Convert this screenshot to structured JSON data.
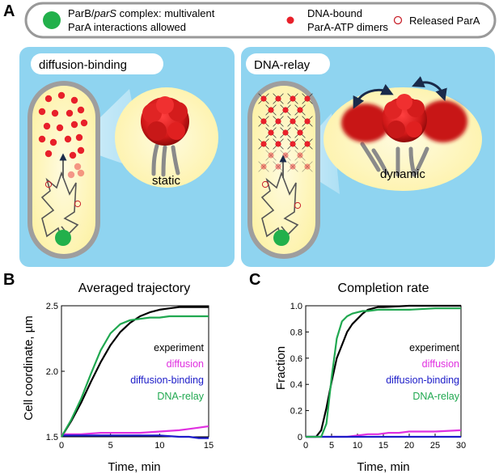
{
  "panels": {
    "a_letter": "A",
    "b_letter": "B",
    "c_letter": "C"
  },
  "legend": {
    "item1_line1_prefix": "ParB/",
    "item1_line1_italic": "parS",
    "item1_line1_suffix": " complex: multivalent",
    "item1_line2": "ParA interactions allowed",
    "item2_line1": "DNA-bound",
    "item2_line2": "ParA-ATP dimers",
    "item3": "Released ParA",
    "colors": {
      "complex": "#22b04b",
      "dimer": "#e8202a",
      "released": "#c8202a"
    }
  },
  "models": {
    "left_title": "diffusion-binding",
    "left_state": "static",
    "right_title": "DNA-relay",
    "right_state": "dynamic"
  },
  "series_names": [
    "experiment",
    "diffusion",
    "diffusion-binding",
    "DNA-relay"
  ],
  "series_colors": {
    "experiment": "#000000",
    "diffusion": "#e030e0",
    "diffusion-binding": "#1c1cc8",
    "DNA-relay": "#20a850"
  },
  "chart_data": [
    {
      "type": "line",
      "title": "Averaged trajectory",
      "xlabel": "Time, min",
      "ylabel": "Cell coordinate, µm",
      "xlim": [
        0,
        15
      ],
      "ylim": [
        1.5,
        2.5
      ],
      "xticks": [
        0,
        5,
        10,
        15
      ],
      "yticks": [
        1.5,
        2.0,
        2.5
      ],
      "ytick_labels": [
        "1.5",
        "2.0",
        "2.5"
      ],
      "series": [
        {
          "name": "experiment",
          "x": [
            0,
            1,
            2,
            3,
            4,
            5,
            6,
            7,
            8,
            9,
            10,
            11,
            12,
            13,
            14,
            15
          ],
          "y": [
            1.5,
            1.62,
            1.76,
            1.92,
            2.07,
            2.2,
            2.3,
            2.37,
            2.42,
            2.45,
            2.47,
            2.48,
            2.49,
            2.49,
            2.49,
            2.49
          ]
        },
        {
          "name": "diffusion",
          "x": [
            0,
            2,
            4,
            6,
            8,
            10,
            12,
            13,
            14,
            15
          ],
          "y": [
            1.52,
            1.52,
            1.53,
            1.53,
            1.53,
            1.54,
            1.55,
            1.56,
            1.57,
            1.58
          ]
        },
        {
          "name": "diffusion-binding",
          "x": [
            0,
            2,
            4,
            6,
            8,
            10,
            12,
            13,
            14,
            15
          ],
          "y": [
            1.51,
            1.51,
            1.51,
            1.51,
            1.51,
            1.51,
            1.5,
            1.5,
            1.49,
            1.49
          ]
        },
        {
          "name": "DNA-relay",
          "x": [
            0,
            1,
            2,
            3,
            4,
            5,
            6,
            7,
            8,
            9,
            10,
            11,
            12,
            13,
            14,
            15
          ],
          "y": [
            1.5,
            1.63,
            1.79,
            1.98,
            2.16,
            2.29,
            2.36,
            2.39,
            2.4,
            2.41,
            2.41,
            2.42,
            2.42,
            2.42,
            2.42,
            2.42
          ]
        }
      ]
    },
    {
      "type": "line",
      "title": "Completion rate",
      "xlabel": "Time, min",
      "ylabel": "Fraction",
      "xlim": [
        0,
        30
      ],
      "ylim": [
        0,
        1.0
      ],
      "xticks": [
        0,
        5,
        10,
        15,
        20,
        25,
        30
      ],
      "yticks": [
        0,
        0.2,
        0.4,
        0.6,
        0.8,
        1.0
      ],
      "ytick_labels": [
        "0",
        "0.2",
        "0.4",
        "0.6",
        "0.8",
        "1.0"
      ],
      "series": [
        {
          "name": "experiment",
          "x": [
            0,
            2,
            3,
            4,
            5,
            6,
            7,
            8,
            9,
            10,
            11,
            12,
            13,
            14,
            15,
            20,
            25,
            30
          ],
          "y": [
            0,
            0,
            0.05,
            0.22,
            0.42,
            0.6,
            0.7,
            0.8,
            0.86,
            0.9,
            0.94,
            0.97,
            0.98,
            0.99,
            0.99,
            1.0,
            1.0,
            1.0
          ]
        },
        {
          "name": "diffusion",
          "x": [
            0,
            8,
            10,
            12,
            14,
            16,
            18,
            20,
            25,
            30
          ],
          "y": [
            0,
            0,
            0.01,
            0.02,
            0.02,
            0.03,
            0.03,
            0.04,
            0.04,
            0.05
          ]
        },
        {
          "name": "diffusion-binding",
          "x": [
            0,
            30
          ],
          "y": [
            0,
            0
          ]
        },
        {
          "name": "DNA-relay",
          "x": [
            0,
            3,
            4,
            5,
            6,
            7,
            8,
            9,
            10,
            11,
            12,
            14,
            16,
            20,
            25,
            30
          ],
          "y": [
            0,
            0,
            0.1,
            0.45,
            0.75,
            0.88,
            0.92,
            0.94,
            0.95,
            0.96,
            0.96,
            0.97,
            0.97,
            0.97,
            0.98,
            0.98
          ]
        }
      ]
    }
  ]
}
